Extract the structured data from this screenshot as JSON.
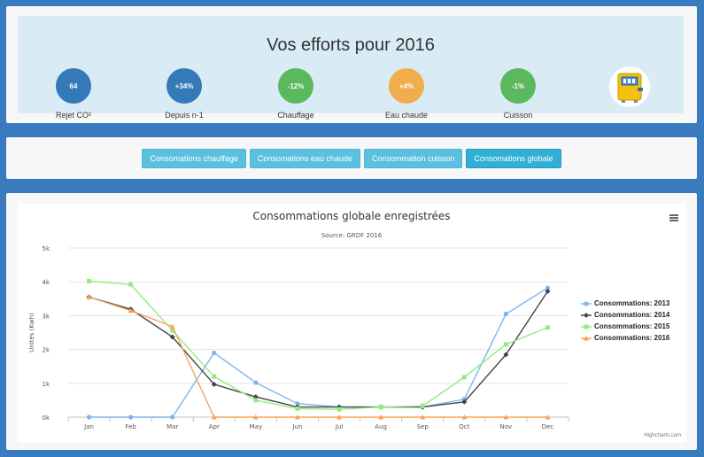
{
  "efforts": {
    "title": "Vos efforts pour 2016",
    "stats": [
      {
        "value": "64",
        "label": "Rejet CO²",
        "color": "#3579b8"
      },
      {
        "value": "+34%",
        "label": "Depuis n-1",
        "color": "#3579b8"
      },
      {
        "value": "-12%",
        "label": "Chauffage",
        "color": "#5cb85c"
      },
      {
        "value": "+4%",
        "label": "Eau chaude",
        "color": "#f0ad4e"
      },
      {
        "value": "-1%",
        "label": "Cuisson",
        "color": "#5cb85c"
      }
    ]
  },
  "tabs": [
    {
      "label": "Consomations chauffage",
      "active": false
    },
    {
      "label": "Consomations eau chaude",
      "active": false
    },
    {
      "label": "Consommation cuisson",
      "active": false
    },
    {
      "label": "Consomations globale",
      "active": true
    }
  ],
  "chart_data": {
    "type": "line",
    "title": "Consommations globale enregistrées",
    "subtitle": "Source: GRDF 2016",
    "ylabel": "Unités (Kwh)",
    "xlabel": "",
    "ylim": [
      0,
      5000
    ],
    "yticks": [
      "0k",
      "1k",
      "2k",
      "3k",
      "4k",
      "5k"
    ],
    "categories": [
      "Jan",
      "Feb",
      "Mar",
      "Apr",
      "May",
      "Jun",
      "Jul",
      "Aug",
      "Sep",
      "Oct",
      "Nov",
      "Dec"
    ],
    "legend_position": "right",
    "grid": true,
    "credits": "Highcharts.com",
    "series": [
      {
        "name": "Consommations: 2013",
        "color": "#7cb5ec",
        "marker": "circle",
        "values": [
          0,
          0,
          0,
          1900,
          1020,
          400,
          300,
          300,
          300,
          530,
          3050,
          3820
        ]
      },
      {
        "name": "Consommations: 2014",
        "color": "#434348",
        "marker": "diamond",
        "values": [
          3550,
          3190,
          2370,
          970,
          600,
          300,
          300,
          300,
          300,
          450,
          1850,
          3720
        ]
      },
      {
        "name": "Consommations: 2015",
        "color": "#90ed7d",
        "marker": "square",
        "values": [
          4020,
          3920,
          2560,
          1200,
          500,
          250,
          230,
          300,
          330,
          1180,
          2150,
          2650
        ]
      },
      {
        "name": "Consommations: 2016",
        "color": "#f7a35c",
        "marker": "triangle",
        "values": [
          3550,
          3150,
          2680,
          0,
          0,
          0,
          0,
          0,
          0,
          0,
          0,
          0
        ]
      }
    ]
  }
}
